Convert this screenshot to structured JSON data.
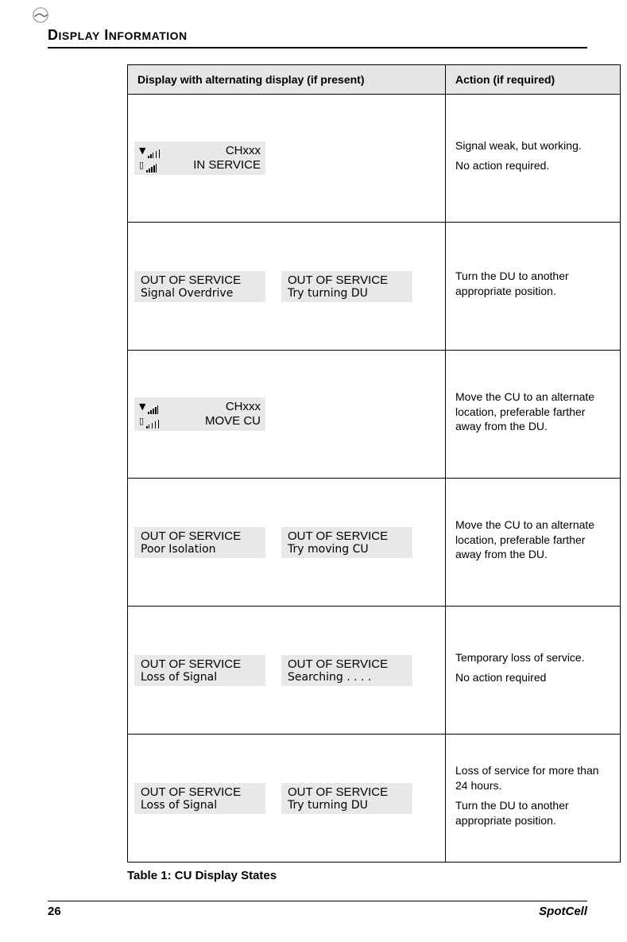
{
  "header": {
    "title_caps_1": "D",
    "title_small_1": "ISPLAY",
    "title_caps_2": " I",
    "title_small_2": "NFORMATION"
  },
  "table": {
    "col1": "Display with alternating display (if present)",
    "col2": "Action (if required)",
    "rows": [
      {
        "panels": [
          {
            "type": "status",
            "top_right": "CHxxx",
            "bottom_right": "IN SERVICE",
            "top_bars": 2,
            "bottom_bars": 4
          }
        ],
        "action": [
          "Signal weak, but working.",
          "No action required."
        ]
      },
      {
        "panels": [
          {
            "type": "msg",
            "line1": "OUT OF SERVICE",
            "line2": "Signal Overdrive"
          },
          {
            "type": "msg",
            "line1": "OUT OF SERVICE",
            "line2": "Try turning DU"
          }
        ],
        "action": [
          "Turn the DU to another appropriate position."
        ]
      },
      {
        "panels": [
          {
            "type": "status",
            "top_right": "CHxxx",
            "bottom_right": "MOVE CU",
            "top_bars": 4,
            "bottom_bars": 1
          }
        ],
        "action": [
          "Move the CU to an alternate location, preferable farther away from the DU."
        ]
      },
      {
        "panels": [
          {
            "type": "msg",
            "line1": "OUT OF SERVICE",
            "line2": "Poor Isolation"
          },
          {
            "type": "msg",
            "line1": "OUT OF SERVICE",
            "line2": "Try moving CU"
          }
        ],
        "action": [
          "Move the CU to an alternate location, preferable farther away from the DU."
        ]
      },
      {
        "panels": [
          {
            "type": "msg",
            "line1": "OUT OF SERVICE",
            "line2": "Loss of Signal"
          },
          {
            "type": "msg",
            "line1": "OUT OF SERVICE",
            "line2": "Searching . . . ."
          }
        ],
        "action": [
          "Temporary loss of service.",
          "No action required"
        ]
      },
      {
        "panels": [
          {
            "type": "msg",
            "line1": "OUT OF SERVICE",
            "line2": "Loss of Signal"
          },
          {
            "type": "msg",
            "line1": "OUT OF SERVICE",
            "line2": "Try turning DU"
          }
        ],
        "action": [
          "Loss of service for more than 24 hours.",
          "Turn the DU to another appropriate position."
        ]
      }
    ]
  },
  "caption": "Table 1:   CU Display States",
  "footer": {
    "page": "26",
    "product": "SpotCell"
  },
  "colors": {
    "header_bg": "#e6e6e6",
    "lcd_bg": "#e8e8e8",
    "border": "#000000",
    "text": "#000000",
    "page_bg": "#ffffff"
  },
  "fonts": {
    "body": "Arial",
    "heading": "Trebuchet MS",
    "lcd": "Arial Narrow"
  }
}
